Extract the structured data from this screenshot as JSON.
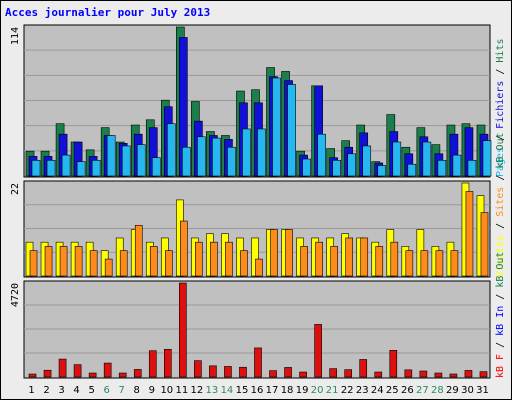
{
  "title": "Acces journalier pour July 2013",
  "colors": {
    "background": "#ececec",
    "plot_background": "#c0c0c0",
    "title": "#0000ff",
    "hits": "#1a7f4a",
    "files": "#1010d8",
    "pages": "#25b8f0",
    "visits": "#ffff00",
    "sites": "#ff8c1a",
    "kb_in": "#0000ff",
    "kb_f": "#ff0000",
    "bandwidth": "#dd1010",
    "weekend_label": "#2e8b57",
    "weekday_label": "#000000"
  },
  "chart_data": [
    {
      "type": "bar",
      "panel": "pages_files_hits",
      "ylim": [
        0,
        114
      ],
      "tick_max_label": "114",
      "right_labels": [
        {
          "text": "Pages",
          "color_key": "pages"
        },
        {
          "text": " / ",
          "color_key": "weekday_label"
        },
        {
          "text": "Fichiers",
          "color_key": "files"
        },
        {
          "text": " / ",
          "color_key": "weekday_label"
        },
        {
          "text": "Hits",
          "color_key": "hits"
        }
      ],
      "categories": [
        "1",
        "2",
        "3",
        "4",
        "5",
        "6",
        "7",
        "8",
        "9",
        "10",
        "11",
        "12",
        "13",
        "14",
        "15",
        "16",
        "17",
        "18",
        "19",
        "20",
        "21",
        "22",
        "23",
        "24",
        "25",
        "26",
        "27",
        "28",
        "29",
        "30",
        "31"
      ],
      "series": [
        {
          "name": "Hits",
          "color_key": "hits",
          "values": [
            19,
            19,
            40,
            26,
            20,
            37,
            26,
            39,
            43,
            58,
            114,
            57,
            34,
            31,
            65,
            66,
            83,
            80,
            19,
            69,
            21,
            27,
            39,
            11,
            47,
            22,
            37,
            24,
            39,
            40,
            39
          ]
        },
        {
          "name": "Fichiers",
          "color_key": "files",
          "values": [
            15,
            15,
            32,
            26,
            15,
            31,
            25,
            32,
            37,
            53,
            106,
            42,
            31,
            28,
            56,
            56,
            76,
            73,
            16,
            69,
            14,
            22,
            33,
            10,
            34,
            17,
            30,
            17,
            32,
            37,
            32
          ]
        },
        {
          "name": "Pages",
          "color_key": "pages",
          "values": [
            12,
            12,
            16,
            11,
            12,
            31,
            23,
            24,
            14,
            40,
            22,
            30,
            29,
            22,
            36,
            36,
            75,
            70,
            13,
            32,
            12,
            17,
            23,
            8,
            26,
            9,
            26,
            12,
            16,
            12,
            27
          ]
        }
      ]
    },
    {
      "type": "bar",
      "panel": "visits_sites",
      "ylim": [
        0,
        22
      ],
      "tick_max_label": "22",
      "right_labels": [
        {
          "text": "Visites",
          "color_key": "visits"
        },
        {
          "text": " / ",
          "color_key": "weekday_label"
        },
        {
          "text": "Sites",
          "color_key": "sites"
        },
        {
          "text": " / ",
          "color_key": "weekday_label"
        },
        {
          "text": "kB Out",
          "color_key": "hits"
        }
      ],
      "categories": [
        "1",
        "2",
        "3",
        "4",
        "5",
        "6",
        "7",
        "8",
        "9",
        "10",
        "11",
        "12",
        "13",
        "14",
        "15",
        "16",
        "17",
        "18",
        "19",
        "20",
        "21",
        "22",
        "23",
        "24",
        "25",
        "26",
        "27",
        "28",
        "29",
        "30",
        "31"
      ],
      "series": [
        {
          "name": "Visites",
          "color_key": "visits",
          "values": [
            8,
            8,
            8,
            8,
            8,
            6,
            9,
            11,
            8,
            9,
            18,
            9,
            10,
            10,
            9,
            9,
            11,
            11,
            9,
            9,
            9,
            10,
            9,
            8,
            11,
            7,
            11,
            7,
            8,
            22,
            19
          ]
        },
        {
          "name": "Sites",
          "color_key": "sites",
          "values": [
            6,
            7,
            7,
            7,
            6,
            4,
            6,
            12,
            7,
            6,
            13,
            8,
            8,
            8,
            6,
            4,
            11,
            11,
            7,
            8,
            7,
            9,
            9,
            7,
            8,
            6,
            6,
            6,
            6,
            20,
            15
          ]
        }
      ]
    },
    {
      "type": "bar",
      "panel": "kbytes",
      "ylim": [
        0,
        4720
      ],
      "tick_max_label": "4720",
      "right_labels": [
        {
          "text": "kB F",
          "color_key": "kb_f"
        },
        {
          "text": " / ",
          "color_key": "weekday_label"
        },
        {
          "text": "kB In",
          "color_key": "kb_in"
        },
        {
          "text": " / ",
          "color_key": "weekday_label"
        },
        {
          "text": "kB Out",
          "color_key": "hits"
        }
      ],
      "categories": [
        "1",
        "2",
        "3",
        "4",
        "5",
        "6",
        "7",
        "8",
        "9",
        "10",
        "11",
        "12",
        "13",
        "14",
        "15",
        "16",
        "17",
        "18",
        "19",
        "20",
        "21",
        "22",
        "23",
        "24",
        "25",
        "26",
        "27",
        "28",
        "29",
        "30",
        "31"
      ],
      "weekend_days": [
        6,
        7,
        13,
        14,
        20,
        21,
        27,
        28
      ],
      "series": [
        {
          "name": "kB F",
          "color_key": "bandwidth",
          "values": [
            150,
            340,
            900,
            620,
            200,
            700,
            200,
            380,
            1320,
            1390,
            4720,
            820,
            560,
            530,
            490,
            1460,
            320,
            480,
            250,
            2640,
            420,
            370,
            880,
            250,
            1340,
            360,
            300,
            200,
            150,
            330,
            270
          ]
        }
      ]
    }
  ]
}
